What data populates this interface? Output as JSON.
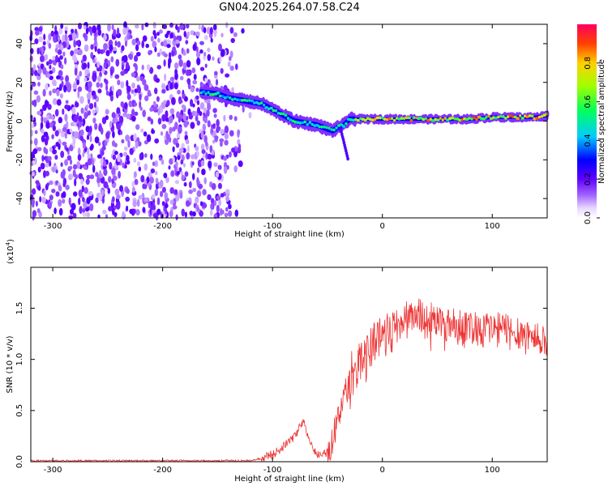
{
  "title": "GN04.2025.264.07.58.C24",
  "chart_data": [
    {
      "type": "heatmap",
      "xlabel": "Height of straight line (km)",
      "ylabel": "Frequency (Hz)",
      "xlim": [
        -320,
        150
      ],
      "ylim": [
        -50,
        50
      ],
      "x_ticks": [
        -300,
        -200,
        -100,
        0,
        100
      ],
      "y_ticks": [
        -40,
        -20,
        0,
        20,
        40
      ],
      "noise_region_x": [
        -320,
        -125
      ],
      "noise_fade_x": [
        -150,
        -120
      ],
      "signal_ridge": {
        "x": [
          -165,
          -150,
          -140,
          -130,
          -120,
          -110,
          -100,
          -90,
          -80,
          -70,
          -60,
          -50,
          -45,
          -40,
          -35,
          -30,
          -20,
          0,
          20,
          40,
          60,
          80,
          100,
          120,
          140,
          150
        ],
        "y": [
          15,
          14,
          12,
          11,
          10,
          9,
          6,
          3,
          0,
          -1,
          -2,
          -4,
          -5,
          -3,
          -2,
          1,
          1,
          1,
          1,
          1,
          1,
          1,
          2,
          2,
          2,
          3
        ]
      },
      "colorbar": {
        "label": "Normalized spectral amplitude",
        "range": [
          0,
          1
        ],
        "ticks": [
          "0.0",
          "0.2",
          "0.4",
          "0.6",
          "0.8"
        ]
      }
    },
    {
      "type": "line",
      "xlabel": "Height of straight line (km)",
      "ylabel": "SNR (10 * v/v)",
      "scale_label": "(x10",
      "scale_exp": "4",
      "xlim": [
        -320,
        150
      ],
      "ylim": [
        0,
        1.9
      ],
      "x_ticks": [
        -300,
        -200,
        -100,
        0,
        100
      ],
      "y_ticks": [
        "0.0",
        "0.5",
        "1.0",
        "1.5"
      ],
      "series_color": "#ee3333",
      "series": [
        {
          "x": [
            -320,
            -120,
            -110,
            -100,
            -90,
            -80,
            -72,
            -68,
            -62,
            -55,
            -50,
            -45,
            -40,
            -35,
            -30,
            -25,
            -20,
            -15,
            -10,
            -5,
            0,
            10,
            20,
            30,
            40,
            60,
            80,
            100,
            120,
            130,
            140,
            150
          ],
          "y": [
            0.01,
            0.01,
            0.03,
            0.07,
            0.15,
            0.25,
            0.4,
            0.25,
            0.1,
            0.05,
            0.1,
            0.2,
            0.45,
            0.65,
            0.75,
            0.9,
            0.95,
            1.05,
            1.15,
            1.2,
            1.25,
            1.3,
            1.38,
            1.45,
            1.4,
            1.35,
            1.32,
            1.3,
            1.28,
            1.25,
            1.2,
            1.18
          ]
        }
      ]
    }
  ]
}
